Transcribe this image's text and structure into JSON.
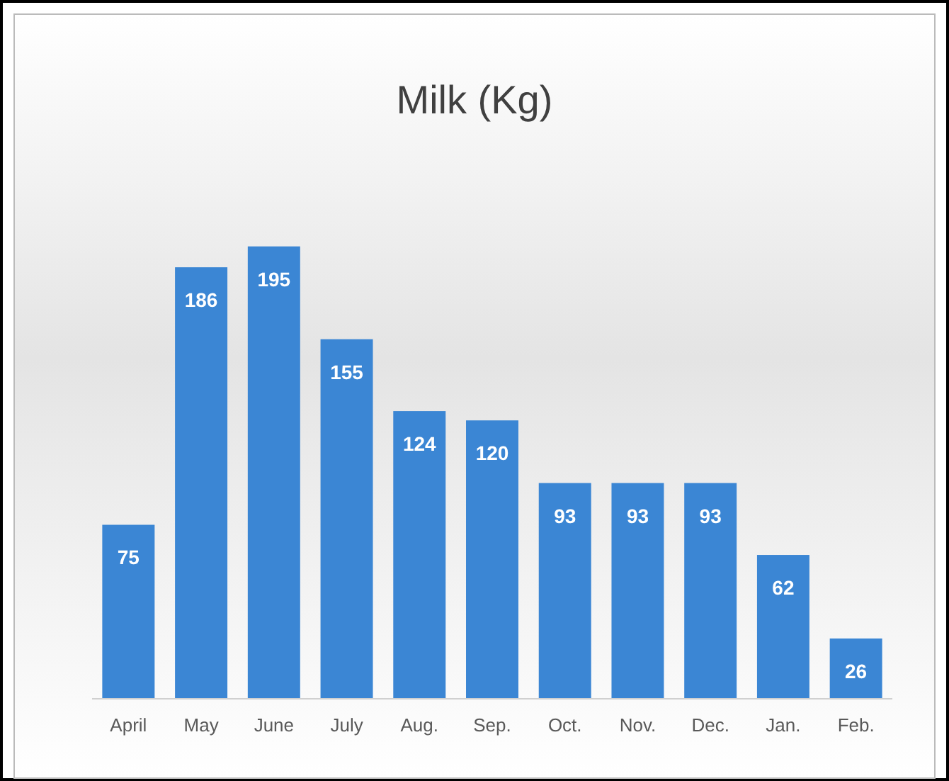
{
  "chart_data": {
    "type": "bar",
    "title": "Milk (Kg)",
    "categories": [
      "April",
      "May",
      "June",
      "July",
      "Aug.",
      "Sep.",
      "Oct.",
      "Nov.",
      "Dec.",
      "Jan.",
      "Feb."
    ],
    "values": [
      75,
      186,
      195,
      155,
      124,
      120,
      93,
      93,
      93,
      62,
      26
    ],
    "color": "#3b86d4",
    "data_labels": true
  }
}
